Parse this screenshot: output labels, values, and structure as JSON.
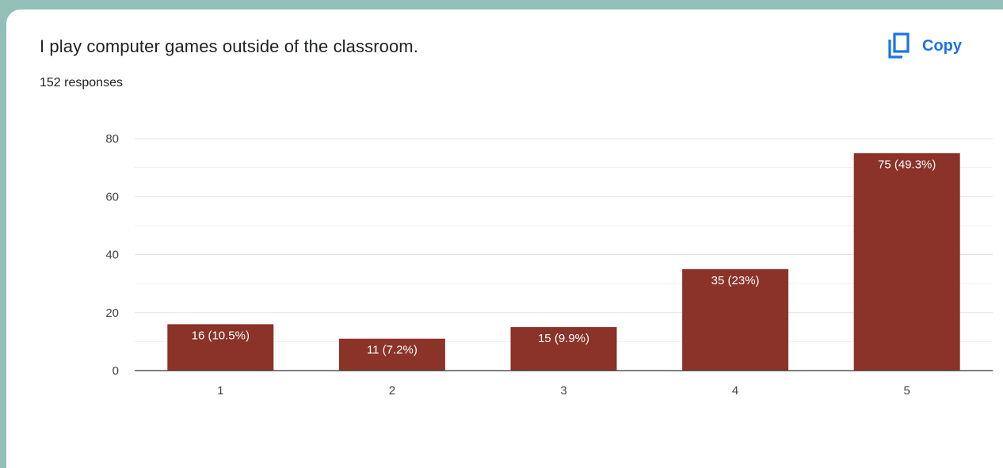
{
  "header": {
    "question": "I play computer games outside of the classroom.",
    "responses": "152 responses",
    "copy_label": "Copy",
    "copy_icon": "copy-icon"
  },
  "colors": {
    "bar": "#8b3229",
    "accent": "#1a73e8",
    "background": "#94bfb8"
  },
  "chart_data": {
    "type": "bar",
    "categories": [
      "1",
      "2",
      "3",
      "4",
      "5"
    ],
    "values": [
      16,
      11,
      15,
      35,
      75
    ],
    "data_labels": [
      "16 (10.5%)",
      "11 (7.2%)",
      "15 (9.9%)",
      "35 (23%)",
      "75 (49.3%)"
    ],
    "y_ticks": [
      "0",
      "20",
      "40",
      "60",
      "80"
    ],
    "ylim": [
      0,
      80
    ],
    "grid": true,
    "title": "",
    "xlabel": "",
    "ylabel": ""
  }
}
